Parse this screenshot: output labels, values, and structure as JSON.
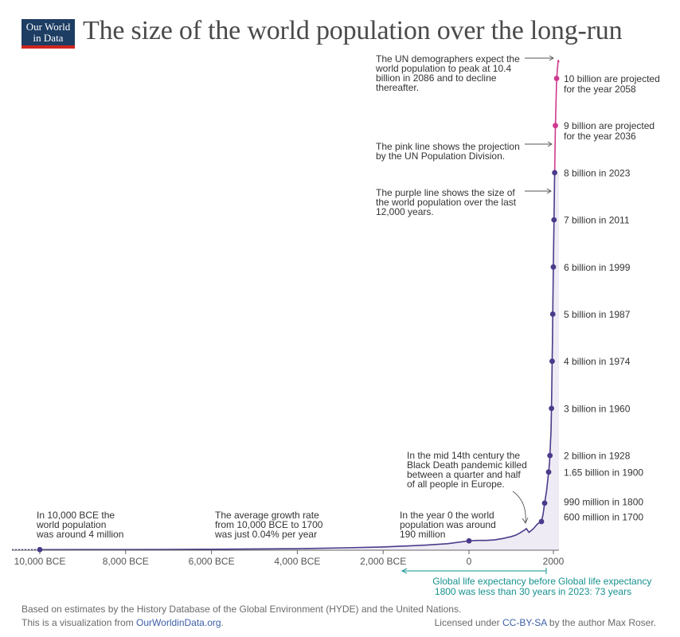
{
  "header": {
    "logo_line1": "Our World",
    "logo_line2": "in Data",
    "title": "The size of the world population over the long-run"
  },
  "chart_data": {
    "type": "line",
    "title": "The size of the world population over the long-run",
    "xlim": [
      -11000,
      2100
    ],
    "ylim": [
      0,
      10.4
    ],
    "x_ticks": [
      {
        "value": -10000,
        "label": "10,000 BCE"
      },
      {
        "value": -8000,
        "label": "8,000 BCE"
      },
      {
        "value": -6000,
        "label": "6,000 BCE"
      },
      {
        "value": -4000,
        "label": "4,000 BCE"
      },
      {
        "value": -2000,
        "label": "2,000 BCE"
      },
      {
        "value": 0,
        "label": "0"
      },
      {
        "value": 2000,
        "label": "2000"
      }
    ],
    "series": [
      {
        "color": "#4b3a8a",
        "x": [
          -11000,
          -10000,
          -9000,
          -8000,
          -7000,
          -6000,
          -5000,
          -4000,
          -3000,
          -2000,
          -1000,
          -500,
          0,
          200,
          400,
          600,
          800,
          1000,
          1100,
          1200,
          1300,
          1340,
          1400,
          1500,
          1600,
          1700,
          1750,
          1800,
          1850,
          1900,
          1910,
          1920,
          1928,
          1940,
          1950,
          1960,
          1970,
          1974,
          1980,
          1987,
          1990,
          1999,
          2000,
          2010,
          2011,
          2020,
          2023
        ],
        "values": [
          0.002,
          0.004,
          0.005,
          0.006,
          0.008,
          0.012,
          0.018,
          0.025,
          0.04,
          0.06,
          0.1,
          0.13,
          0.19,
          0.2,
          0.2,
          0.21,
          0.24,
          0.28,
          0.31,
          0.36,
          0.42,
          0.45,
          0.37,
          0.45,
          0.55,
          0.6,
          0.75,
          0.99,
          1.26,
          1.65,
          1.75,
          1.86,
          2.0,
          2.3,
          2.5,
          3.0,
          3.7,
          4.0,
          4.4,
          5.0,
          5.3,
          6.0,
          6.1,
          6.9,
          7.0,
          7.8,
          8.0
        ]
      },
      {
        "color": "#cf3a8f",
        "x": [
          2023,
          2036,
          2058,
          2086,
          2100
        ],
        "values": [
          8.0,
          9.0,
          10.0,
          10.4,
          10.35
        ]
      }
    ],
    "markers": [
      {
        "x": -10000,
        "value": 0.004,
        "color": "#4b3a8a"
      },
      {
        "x": 0,
        "value": 0.19,
        "color": "#4b3a8a"
      },
      {
        "x": 1700,
        "value": 0.6,
        "color": "#4b3a8a",
        "label": "600 million in 1700"
      },
      {
        "x": 1800,
        "value": 0.99,
        "color": "#4b3a8a",
        "label": "990 million in 1800"
      },
      {
        "x": 1900,
        "value": 1.65,
        "color": "#4b3a8a",
        "label": "1.65 billion in 1900"
      },
      {
        "x": 1928,
        "value": 2.0,
        "color": "#4b3a8a",
        "label": "2 billion in 1928"
      },
      {
        "x": 1960,
        "value": 3.0,
        "color": "#4b3a8a",
        "label": "3 billion in 1960"
      },
      {
        "x": 1974,
        "value": 4.0,
        "color": "#4b3a8a",
        "label": "4 billion in 1974"
      },
      {
        "x": 1987,
        "value": 5.0,
        "color": "#4b3a8a",
        "label": "5 billion in 1987"
      },
      {
        "x": 1999,
        "value": 6.0,
        "color": "#4b3a8a",
        "label": "6 billion in 1999"
      },
      {
        "x": 2011,
        "value": 7.0,
        "color": "#4b3a8a",
        "label": "7 billion in 2011"
      },
      {
        "x": 2023,
        "value": 8.0,
        "color": "#4b3a8a",
        "label": "8 billion in 2023"
      },
      {
        "x": 2036,
        "value": 9.0,
        "color": "#cf3a8f",
        "label": "9 billion are projected",
        "label2": "for the year 2036"
      },
      {
        "x": 2058,
        "value": 10.0,
        "color": "#cf3a8f",
        "label": "10 billion are projected",
        "label2": "for the year 2058"
      }
    ],
    "annotations": {
      "peak": [
        "The UN demographers expect the",
        "world population to peak at 10.4",
        "billion in 2086 and to decline",
        "thereafter."
      ],
      "pink": [
        "The pink line shows the projection",
        "by the UN Population Division."
      ],
      "purple": [
        "The purple line shows the size of",
        "the world population over the last",
        "12,000 years."
      ],
      "black_death": [
        "In the mid 14th century the",
        "Black Death pandemic killed",
        "between a quarter and half",
        "of all people in Europe."
      ],
      "bce10000": [
        "In 10,000 BCE the",
        "world population",
        "was around 4 million"
      ],
      "growth": [
        "The average growth rate",
        "from 10,000 BCE to 1700",
        "was just 0.04% per year"
      ],
      "year0": [
        "In the year 0 the world",
        "population was around",
        "190 million"
      ]
    },
    "life_expectancy": {
      "before": [
        "Global life expectancy before",
        "1800 was less than 30 years"
      ],
      "now": [
        "Global life expectancy",
        "in 2023: 73 years"
      ],
      "color": "#16918e"
    },
    "colors": {
      "historic": "#4b3a8a",
      "projection": "#cf3a8f",
      "area_fill": "#eeebf4",
      "axis": "#666666",
      "annotation_text": "#333333"
    }
  },
  "footer": {
    "source": "Based on estimates by the History Database of the Global Environment (HYDE) and the United Nations.",
    "viz_prefix": "This is a visualization from ",
    "viz_link": "OurWorldinData.org",
    "viz_suffix": ".",
    "license_prefix": "Licensed under ",
    "license_link": "CC-BY-SA",
    "license_suffix": " by the author Max Roser."
  }
}
